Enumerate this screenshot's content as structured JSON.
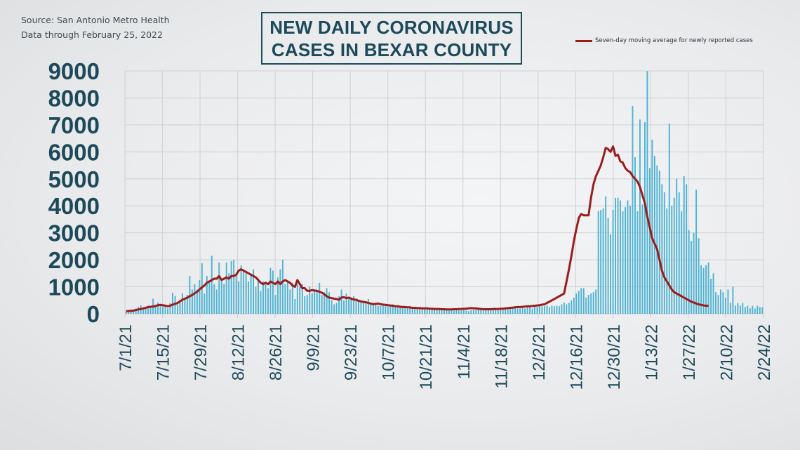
{
  "source": {
    "line1": "Source: San Antonio Metro Health",
    "line2": "Data through  February  25, 2022"
  },
  "title_lines": [
    "NEW DAILY CORONAVIRUS",
    "CASES IN BEXAR COUNTY"
  ],
  "colors": {
    "bars": "#4eb3d3",
    "line": "#9b1c1c",
    "text": "#1c4a5a",
    "grid": "#cdd0d3"
  },
  "chart_data": {
    "type": "bar",
    "title": "NEW DAILY CORONAVIRUS CASES IN BEXAR COUNTY",
    "ylim": [
      0,
      9000
    ],
    "yticks": [
      0,
      1000,
      2000,
      3000,
      4000,
      5000,
      6000,
      7000,
      8000,
      9000
    ],
    "xtick_labels": [
      "7/1/21",
      "7/15/21",
      "7/29/21",
      "8/12/21",
      "8/26/21",
      "9/9/21",
      "9/23/21",
      "10/7/21",
      "10/21/21",
      "11/4/21",
      "11/18/21",
      "12/2/21",
      "12/16/21",
      "12/30/21",
      "1/13/22",
      "1/27/22",
      "2/10/22",
      "2/24/22"
    ],
    "grid": true,
    "legend_position": "top-right",
    "series": [
      {
        "kind": "bar",
        "values": [
          80,
          100,
          120,
          150,
          200,
          250,
          320,
          220,
          180,
          300,
          250,
          560,
          300,
          420,
          310,
          280,
          250,
          200,
          400,
          780,
          650,
          350,
          500,
          760,
          600,
          700,
          1400,
          900,
          1100,
          900,
          1250,
          1870,
          750,
          1400,
          1200,
          2150,
          1100,
          900,
          1900,
          1200,
          1100,
          1900,
          1500,
          1950,
          2000,
          1400,
          1200,
          1800,
          1600,
          1500,
          1200,
          1450,
          1650,
          1000,
          1300,
          850,
          1200,
          1150,
          950,
          1700,
          1600,
          700,
          1350,
          1650,
          2000,
          1100,
          1200,
          900,
          1150,
          550,
          1100,
          1000,
          1100,
          650,
          700,
          1000,
          750,
          900,
          850,
          1150,
          700,
          800,
          950,
          800,
          500,
          350,
          400,
          650,
          900,
          500,
          750,
          550,
          600,
          650,
          550,
          450,
          500,
          400,
          400,
          550,
          350,
          400,
          350,
          300,
          300,
          350,
          300,
          280,
          300,
          350,
          300,
          300,
          280,
          300,
          250,
          220,
          250,
          220,
          200,
          200,
          200,
          180,
          200,
          180,
          200,
          200,
          180,
          150,
          180,
          150,
          150,
          150,
          120,
          150,
          120,
          150,
          130,
          130,
          150,
          120,
          100,
          130,
          130,
          150,
          180,
          200,
          150,
          180,
          200,
          200,
          180,
          150,
          150,
          200,
          200,
          220,
          200,
          180,
          200,
          250,
          200,
          200,
          230,
          200,
          250,
          280,
          200,
          300,
          250,
          350,
          280,
          280,
          300,
          250,
          300,
          280,
          300,
          280,
          350,
          420,
          350,
          400,
          500,
          600,
          750,
          850,
          950,
          950,
          600,
          700,
          750,
          800,
          900,
          3800,
          3850,
          3900,
          4350,
          3550,
          2950,
          3850,
          4300,
          4300,
          4200,
          3800,
          3950,
          4200,
          4000,
          7700,
          5800,
          3800,
          7200,
          4050,
          7100,
          9000,
          5400,
          6450,
          5850,
          5500,
          5300,
          4800,
          4500,
          3900,
          7050,
          4000,
          4300,
          5000,
          4500,
          3800,
          5100,
          4800,
          3100,
          2700,
          3000,
          4600,
          2800,
          1800,
          1700,
          1800,
          1900,
          1300,
          1500,
          800,
          700,
          900,
          800,
          600,
          900,
          400,
          1000,
          300,
          400,
          300,
          400,
          250,
          300,
          200,
          300,
          200,
          300,
          250,
          250
        ]
      },
      {
        "kind": "line",
        "name": "Seven-day moving average for newly reported cases",
        "values": [
          100,
          105,
          110,
          120,
          140,
          160,
          180,
          200,
          220,
          250,
          260,
          270,
          290,
          320,
          330,
          320,
          300,
          280,
          300,
          340,
          370,
          400,
          460,
          520,
          560,
          600,
          650,
          700,
          760,
          820,
          900,
          980,
          1050,
          1150,
          1200,
          1250,
          1300,
          1300,
          1400,
          1250,
          1300,
          1350,
          1300,
          1400,
          1400,
          1450,
          1600,
          1650,
          1600,
          1550,
          1500,
          1450,
          1400,
          1350,
          1250,
          1150,
          1100,
          1150,
          1100,
          1200,
          1150,
          1100,
          1200,
          1100,
          1200,
          1250,
          1200,
          1150,
          1050,
          1000,
          1250,
          1100,
          950,
          950,
          850,
          850,
          880,
          860,
          850,
          820,
          780,
          720,
          650,
          600,
          580,
          560,
          550,
          520,
          600,
          620,
          580,
          600,
          560,
          530,
          520,
          480,
          460,
          440,
          430,
          400,
          380,
          360,
          370,
          380,
          360,
          340,
          330,
          320,
          310,
          300,
          280,
          280,
          260,
          250,
          250,
          240,
          240,
          220,
          220,
          210,
          210,
          200,
          200,
          200,
          190,
          190,
          180,
          180,
          180,
          170,
          170,
          160,
          160,
          160,
          170,
          170,
          180,
          180,
          190,
          190,
          200,
          210,
          200,
          200,
          190,
          180,
          170,
          170,
          170,
          170,
          180,
          180,
          180,
          190,
          190,
          200,
          210,
          220,
          230,
          240,
          250,
          250,
          260,
          270,
          280,
          280,
          290,
          300,
          310,
          320,
          340,
          350,
          400,
          450,
          500,
          550,
          600,
          650,
          700,
          750,
          1200,
          1650,
          2150,
          2700,
          3150,
          3550,
          3700,
          3650,
          3650,
          3650,
          4300,
          4800,
          5100,
          5300,
          5500,
          5800,
          6150,
          6100,
          6000,
          6200,
          5850,
          5900,
          5650,
          5600,
          5400,
          5300,
          5250,
          5100,
          5000,
          4900,
          4700,
          4400,
          4100,
          3600,
          3200,
          2800,
          2600,
          2400,
          2000,
          1600,
          1350,
          1200,
          1050,
          900,
          800,
          750,
          700,
          650,
          600,
          550,
          500,
          450,
          420,
          380,
          350,
          330,
          310,
          300,
          300
        ]
      }
    ]
  }
}
